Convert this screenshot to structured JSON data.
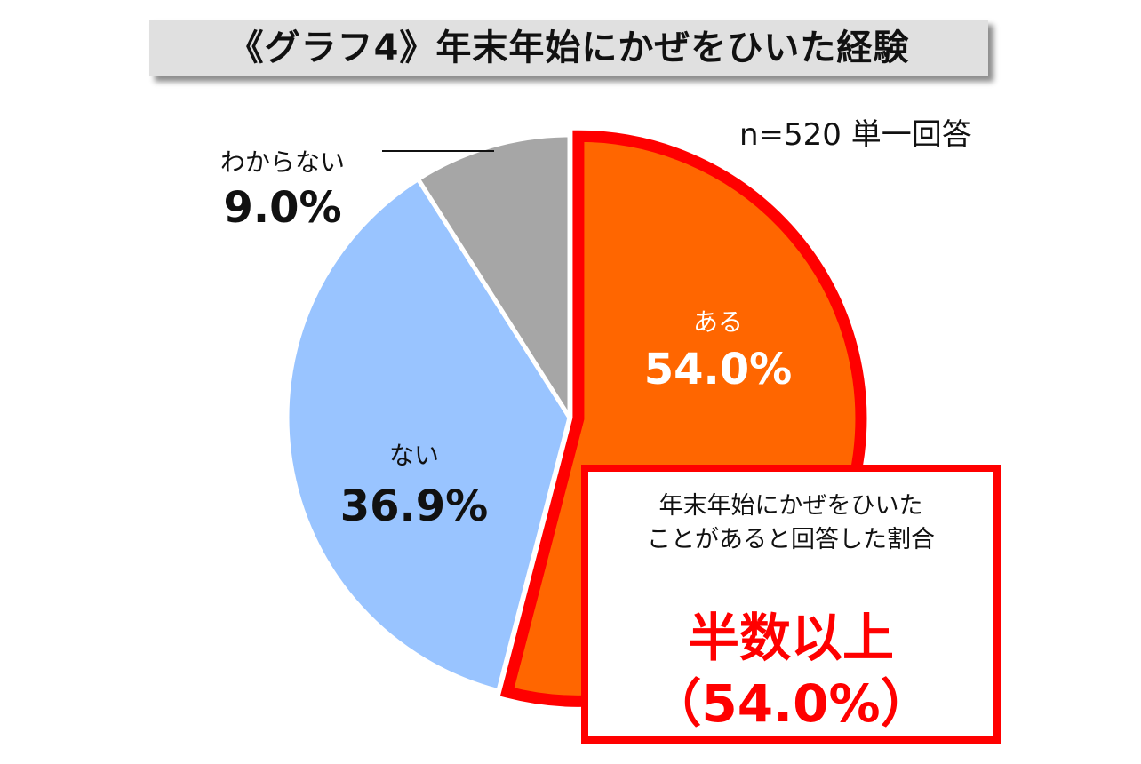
{
  "title": "《グラフ4》年末年始にかぜをひいた経験",
  "sample_note": "n=520 単一回答",
  "chart_data": {
    "type": "pie",
    "title": "《グラフ4》年末年始にかぜをひいた経験",
    "slices": [
      {
        "label": "ある",
        "value": 54.0,
        "value_label": "54.0%",
        "color": "#ff6600",
        "highlighted": true
      },
      {
        "label": "ない",
        "value": 36.9,
        "value_label": "36.9%",
        "color": "#99c4ff"
      },
      {
        "label": "わからない",
        "value": 9.0,
        "value_label": "9.0%",
        "color": "#a6a6a6"
      }
    ],
    "start_angle": "12 o'clock",
    "direction": "clockwise",
    "highlight_color": "#ff0000"
  },
  "callout": {
    "line1": "年末年始にかぜをひいた",
    "line2": "ことがあると回答した割合",
    "headline": "半数以上",
    "value": "（54.0%）"
  }
}
